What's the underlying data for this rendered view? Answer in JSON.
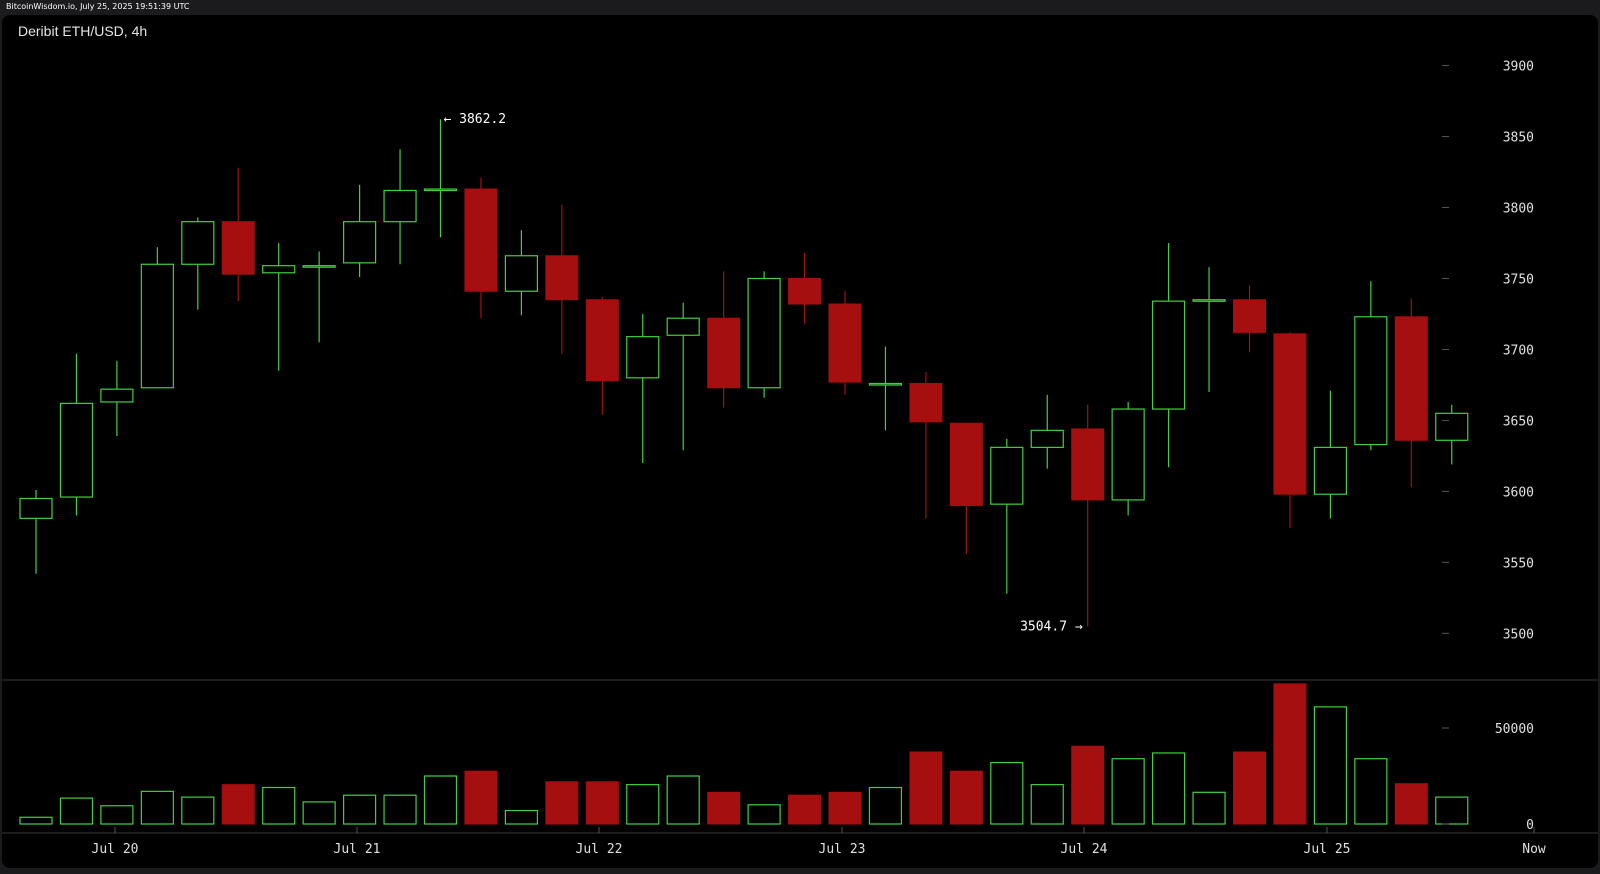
{
  "watermark": "BitcoinWisdom.io, July 25, 2025 19:51:39 UTC",
  "title": "Deribit ETH/USD, 4h",
  "colors": {
    "up": "#3fd13f",
    "down": "#a50f0f",
    "background": "#000000",
    "grid_tick": "#555555"
  },
  "chart_data": {
    "type": "candlestick",
    "title": "Deribit ETH/USD, 4h",
    "interval": "4h",
    "price_axis": {
      "ticks": [
        3500,
        3550,
        3600,
        3650,
        3700,
        3750,
        3800,
        3850,
        3900
      ],
      "ylim": [
        3465,
        3918
      ]
    },
    "volume_axis": {
      "ticks": [
        0,
        50000
      ],
      "ylim": [
        0,
        70000
      ]
    },
    "date_labels": [
      "Jul 20",
      "Jul 21",
      "Jul 22",
      "Jul 23",
      "Jul 24",
      "Jul 25",
      "Now"
    ],
    "annotations": [
      {
        "text": "← 3862.2",
        "value": 3862.2,
        "side": "right"
      },
      {
        "text": "3504.7 →",
        "value": 3504.7,
        "side": "left"
      }
    ],
    "candles": [
      {
        "o": 3581,
        "h": 3601,
        "l": 3542,
        "c": 3595,
        "v": 3500
      },
      {
        "o": 3596,
        "h": 3697,
        "l": 3583,
        "c": 3662,
        "v": 13500
      },
      {
        "o": 3663,
        "h": 3692,
        "l": 3639,
        "c": 3672,
        "v": 9500
      },
      {
        "o": 3673,
        "h": 3772,
        "l": 3673,
        "c": 3760,
        "v": 17000
      },
      {
        "o": 3760,
        "h": 3793,
        "l": 3728,
        "c": 3790,
        "v": 14000
      },
      {
        "o": 3790,
        "h": 3828,
        "l": 3734,
        "c": 3753,
        "v": 20500
      },
      {
        "o": 3754,
        "h": 3775,
        "l": 3685,
        "c": 3759,
        "v": 19000
      },
      {
        "o": 3759,
        "h": 3769,
        "l": 3705,
        "c": 3759,
        "v": 11500
      },
      {
        "o": 3761,
        "h": 3816,
        "l": 3751,
        "c": 3790,
        "v": 15000
      },
      {
        "o": 3790,
        "h": 3841,
        "l": 3760,
        "c": 3812,
        "v": 15000
      },
      {
        "o": 3812,
        "h": 3862.2,
        "l": 3779,
        "c": 3813,
        "v": 25000
      },
      {
        "o": 3813,
        "h": 3821,
        "l": 3722,
        "c": 3741,
        "v": 27500
      },
      {
        "o": 3741,
        "h": 3784,
        "l": 3724,
        "c": 3766,
        "v": 7000
      },
      {
        "o": 3766,
        "h": 3802,
        "l": 3697,
        "c": 3735,
        "v": 22000
      },
      {
        "o": 3735,
        "h": 3737,
        "l": 3654,
        "c": 3678,
        "v": 22000
      },
      {
        "o": 3680,
        "h": 3725,
        "l": 3620,
        "c": 3709,
        "v": 20500
      },
      {
        "o": 3710,
        "h": 3733,
        "l": 3629,
        "c": 3722,
        "v": 25000
      },
      {
        "o": 3722,
        "h": 3755,
        "l": 3659,
        "c": 3673,
        "v": 16500
      },
      {
        "o": 3673,
        "h": 3755,
        "l": 3666,
        "c": 3750,
        "v": 10000
      },
      {
        "o": 3750,
        "h": 3768,
        "l": 3718,
        "c": 3732,
        "v": 15000
      },
      {
        "o": 3732,
        "h": 3741,
        "l": 3668,
        "c": 3677,
        "v": 16500
      },
      {
        "o": 3676,
        "h": 3702,
        "l": 3643,
        "c": 3676,
        "v": 19000
      },
      {
        "o": 3676,
        "h": 3684,
        "l": 3581,
        "c": 3649,
        "v": 37500
      },
      {
        "o": 3648,
        "h": 3648,
        "l": 3556,
        "c": 3590,
        "v": 27500
      },
      {
        "o": 3591,
        "h": 3637,
        "l": 3528,
        "c": 3631,
        "v": 32000
      },
      {
        "o": 3631,
        "h": 3668,
        "l": 3616,
        "c": 3643,
        "v": 20500
      },
      {
        "o": 3644,
        "h": 3661,
        "l": 3504.7,
        "c": 3594,
        "v": 40500
      },
      {
        "o": 3594,
        "h": 3663,
        "l": 3583,
        "c": 3658,
        "v": 34000
      },
      {
        "o": 3658,
        "h": 3775,
        "l": 3617,
        "c": 3734,
        "v": 37000
      },
      {
        "o": 3734,
        "h": 3758,
        "l": 3670,
        "c": 3735,
        "v": 16500
      },
      {
        "o": 3735,
        "h": 3745,
        "l": 3698,
        "c": 3712,
        "v": 37500
      },
      {
        "o": 3711,
        "h": 3712,
        "l": 3574,
        "c": 3598,
        "v": 73000
      },
      {
        "o": 3598,
        "h": 3671,
        "l": 3581,
        "c": 3631,
        "v": 61000
      },
      {
        "o": 3633,
        "h": 3748,
        "l": 3629,
        "c": 3723,
        "v": 34000
      },
      {
        "o": 3723,
        "h": 3736,
        "l": 3603,
        "c": 3636,
        "v": 21000
      },
      {
        "o": 3636,
        "h": 3661,
        "l": 3619,
        "c": 3655,
        "v": 14000
      }
    ]
  }
}
